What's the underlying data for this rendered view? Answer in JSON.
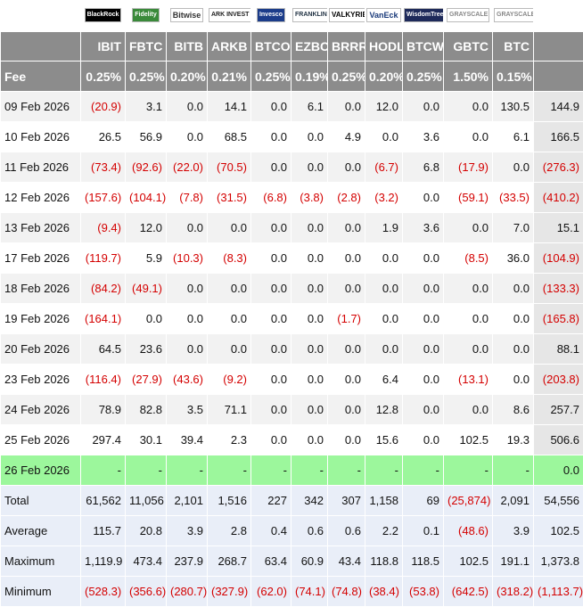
{
  "logos": [
    "BlackRock",
    "Fidelity",
    "Bitwise",
    "ARK INVEST",
    "Invesco",
    "FRANKLIN TEMPLETON",
    "VALKYRIE",
    "VanEck",
    "WisdomTree",
    "GRAYSCALE",
    "GRAYSCALE"
  ],
  "total_label": "Total",
  "tickers": [
    "IBIT",
    "FBTC",
    "BITB",
    "ARKB",
    "BTCO",
    "EZBC",
    "BRRR",
    "HODL",
    "BTCW",
    "GBTC",
    "BTC"
  ],
  "fee": {
    "label": "Fee",
    "values": [
      "0.25%",
      "0.25%",
      "0.20%",
      "0.21%",
      "0.25%",
      "0.19%",
      "0.25%",
      "0.20%",
      "0.25%",
      "1.50%",
      "0.15%"
    ]
  },
  "rows": [
    {
      "date": "09 Feb 2026",
      "values": [
        "(20.9)",
        "3.1",
        "0.0",
        "14.1",
        "0.0",
        "6.1",
        "0.0",
        "12.0",
        "0.0",
        "0.0",
        "130.5",
        "144.9"
      ]
    },
    {
      "date": "10 Feb 2026",
      "values": [
        "26.5",
        "56.9",
        "0.0",
        "68.5",
        "0.0",
        "0.0",
        "4.9",
        "0.0",
        "3.6",
        "0.0",
        "6.1",
        "166.5"
      ]
    },
    {
      "date": "11 Feb 2026",
      "values": [
        "(73.4)",
        "(92.6)",
        "(22.0)",
        "(70.5)",
        "0.0",
        "0.0",
        "0.0",
        "(6.7)",
        "6.8",
        "(17.9)",
        "0.0",
        "(276.3)"
      ]
    },
    {
      "date": "12 Feb 2026",
      "values": [
        "(157.6)",
        "(104.1)",
        "(7.8)",
        "(31.5)",
        "(6.8)",
        "(3.8)",
        "(2.8)",
        "(3.2)",
        "0.0",
        "(59.1)",
        "(33.5)",
        "(410.2)"
      ]
    },
    {
      "date": "13 Feb 2026",
      "values": [
        "(9.4)",
        "12.0",
        "0.0",
        "0.0",
        "0.0",
        "0.0",
        "0.0",
        "1.9",
        "3.6",
        "0.0",
        "7.0",
        "15.1"
      ]
    },
    {
      "date": "17 Feb 2026",
      "values": [
        "(119.7)",
        "5.9",
        "(10.3)",
        "(8.3)",
        "0.0",
        "0.0",
        "0.0",
        "0.0",
        "0.0",
        "(8.5)",
        "36.0",
        "(104.9)"
      ]
    },
    {
      "date": "18 Feb 2026",
      "values": [
        "(84.2)",
        "(49.1)",
        "0.0",
        "0.0",
        "0.0",
        "0.0",
        "0.0",
        "0.0",
        "0.0",
        "0.0",
        "0.0",
        "(133.3)"
      ]
    },
    {
      "date": "19 Feb 2026",
      "values": [
        "(164.1)",
        "0.0",
        "0.0",
        "0.0",
        "0.0",
        "0.0",
        "(1.7)",
        "0.0",
        "0.0",
        "0.0",
        "0.0",
        "(165.8)"
      ]
    },
    {
      "date": "20 Feb 2026",
      "values": [
        "64.5",
        "23.6",
        "0.0",
        "0.0",
        "0.0",
        "0.0",
        "0.0",
        "0.0",
        "0.0",
        "0.0",
        "0.0",
        "88.1"
      ]
    },
    {
      "date": "23 Feb 2026",
      "values": [
        "(116.4)",
        "(27.9)",
        "(43.6)",
        "(9.2)",
        "0.0",
        "0.0",
        "0.0",
        "6.4",
        "0.0",
        "(13.1)",
        "0.0",
        "(203.8)"
      ]
    },
    {
      "date": "24 Feb 2026",
      "values": [
        "78.9",
        "82.8",
        "3.5",
        "71.1",
        "0.0",
        "0.0",
        "0.0",
        "12.8",
        "0.0",
        "0.0",
        "8.6",
        "257.7"
      ]
    },
    {
      "date": "25 Feb 2026",
      "values": [
        "297.4",
        "30.1",
        "39.4",
        "2.3",
        "0.0",
        "0.0",
        "0.0",
        "15.6",
        "0.0",
        "102.5",
        "19.3",
        "506.6"
      ]
    }
  ],
  "pending_row": {
    "date": "26 Feb 2026",
    "values": [
      "-",
      "-",
      "-",
      "-",
      "-",
      "-",
      "-",
      "-",
      "-",
      "-",
      "-",
      "0.0"
    ]
  },
  "summary": [
    {
      "label": "Total",
      "values": [
        "61,562",
        "11,056",
        "2,101",
        "1,516",
        "227",
        "342",
        "307",
        "1,158",
        "69",
        "(25,874)",
        "2,091",
        "54,556"
      ]
    },
    {
      "label": "Average",
      "values": [
        "115.7",
        "20.8",
        "3.9",
        "2.8",
        "0.4",
        "0.6",
        "0.6",
        "2.2",
        "0.1",
        "(48.6)",
        "3.9",
        "102.5"
      ]
    },
    {
      "label": "Maximum",
      "values": [
        "1,119.9",
        "473.4",
        "237.9",
        "268.7",
        "63.4",
        "60.9",
        "43.4",
        "118.8",
        "118.5",
        "102.5",
        "191.1",
        "1,373.8"
      ]
    },
    {
      "label": "Minimum",
      "values": [
        "(528.3)",
        "(356.6)",
        "(280.7)",
        "(327.9)",
        "(62.0)",
        "(74.1)",
        "(74.8)",
        "(38.4)",
        "(53.8)",
        "(642.5)",
        "(318.2)",
        "(1,113.7)"
      ]
    }
  ]
}
